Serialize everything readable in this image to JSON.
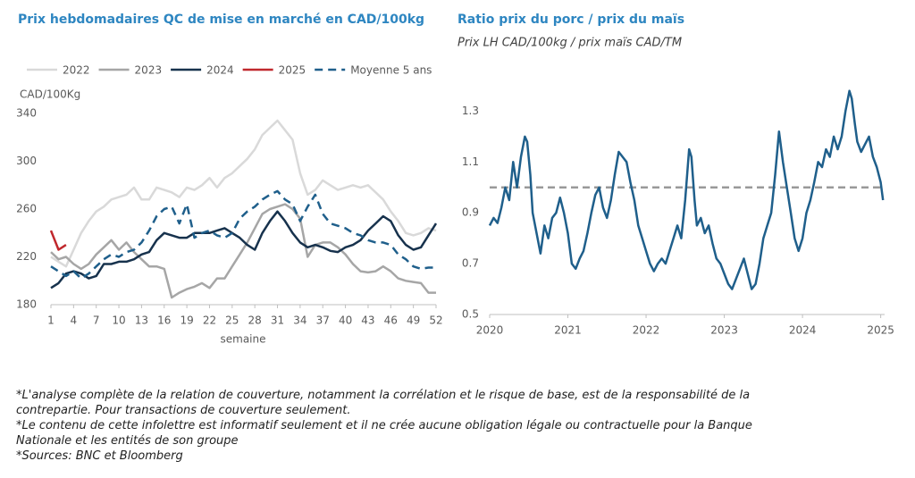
{
  "chart_data": [
    {
      "type": "line",
      "title": "Prix hebdomadaires QC de mise en marché en CAD/100kg",
      "y_label": "CAD/100Kg",
      "x_label": "semaine",
      "x": [
        1,
        2,
        3,
        4,
        5,
        6,
        7,
        8,
        9,
        10,
        11,
        12,
        13,
        14,
        15,
        16,
        17,
        18,
        19,
        20,
        21,
        22,
        23,
        24,
        25,
        26,
        27,
        28,
        29,
        30,
        31,
        32,
        33,
        34,
        35,
        36,
        37,
        38,
        39,
        40,
        41,
        42,
        43,
        44,
        45,
        46,
        47,
        48,
        49,
        50,
        51,
        52
      ],
      "xlim": [
        1,
        52
      ],
      "xticks": [
        1,
        4,
        7,
        10,
        13,
        16,
        19,
        22,
        25,
        28,
        31,
        34,
        37,
        40,
        43,
        46,
        49,
        52
      ],
      "ylim": [
        180,
        340
      ],
      "yticks": [
        180,
        220,
        260,
        300,
        340
      ],
      "series": [
        {
          "name": "2022",
          "color": "#d9d9d9",
          "style": "solid",
          "values": [
            220,
            216,
            212,
            226,
            240,
            250,
            258,
            262,
            268,
            270,
            272,
            278,
            268,
            268,
            278,
            276,
            274,
            270,
            278,
            276,
            280,
            286,
            278,
            286,
            290,
            296,
            302,
            310,
            322,
            328,
            334,
            326,
            318,
            290,
            272,
            276,
            284,
            280,
            276,
            278,
            280,
            278,
            280,
            274,
            268,
            258,
            250,
            240,
            238,
            240,
            244,
            242
          ]
        },
        {
          "name": "2023",
          "color": "#a6a6a6",
          "style": "solid",
          "values": [
            224,
            218,
            220,
            214,
            210,
            214,
            222,
            228,
            234,
            226,
            232,
            224,
            218,
            212,
            212,
            210,
            186,
            190,
            193,
            195,
            198,
            194,
            202,
            202,
            212,
            222,
            232,
            244,
            256,
            260,
            262,
            264,
            260,
            252,
            220,
            230,
            232,
            232,
            228,
            222,
            214,
            208,
            207,
            208,
            212,
            208,
            202,
            200,
            199,
            198,
            190,
            190
          ]
        },
        {
          "name": "2024",
          "color": "#17324d",
          "style": "solid",
          "values": [
            194,
            198,
            206,
            208,
            206,
            202,
            204,
            214,
            214,
            216,
            216,
            218,
            222,
            224,
            234,
            240,
            238,
            236,
            236,
            240,
            240,
            240,
            242,
            244,
            240,
            236,
            230,
            226,
            240,
            250,
            258,
            250,
            240,
            232,
            228,
            230,
            228,
            225,
            224,
            228,
            230,
            234,
            242,
            248,
            254,
            250,
            238,
            230,
            226,
            228,
            238,
            248
          ]
        },
        {
          "name": "2025",
          "color": "#c0282d",
          "style": "solid",
          "values": [
            242,
            226,
            230,
            null,
            null,
            null,
            null,
            null,
            null,
            null,
            null,
            null,
            null,
            null,
            null,
            null,
            null,
            null,
            null,
            null,
            null,
            null,
            null,
            null,
            null,
            null,
            null,
            null,
            null,
            null,
            null,
            null,
            null,
            null,
            null,
            null,
            null,
            null,
            null,
            null,
            null,
            null,
            null,
            null,
            null,
            null,
            null,
            null,
            null,
            null,
            null,
            null
          ]
        },
        {
          "name": "Moyenne 5 ans",
          "color": "#1f5f8b",
          "style": "dashed",
          "values": [
            212,
            208,
            204,
            208,
            202,
            206,
            212,
            218,
            222,
            220,
            224,
            226,
            232,
            242,
            254,
            260,
            262,
            248,
            264,
            236,
            240,
            242,
            238,
            236,
            240,
            252,
            258,
            262,
            268,
            272,
            275,
            268,
            264,
            250,
            262,
            272,
            256,
            248,
            246,
            244,
            240,
            238,
            234,
            232,
            232,
            230,
            222,
            218,
            212,
            210,
            211,
            211
          ]
        }
      ]
    },
    {
      "type": "line",
      "title": "Ratio prix du porc / prix du maïs",
      "subtitle": "Prix LH CAD/100kg / prix maïs CAD/TM",
      "color": "#1f5f8b",
      "x": [
        2020.0,
        2020.05,
        2020.1,
        2020.15,
        2020.2,
        2020.25,
        2020.3,
        2020.35,
        2020.4,
        2020.45,
        2020.48,
        2020.52,
        2020.55,
        2020.6,
        2020.65,
        2020.7,
        2020.75,
        2020.8,
        2020.85,
        2020.9,
        2020.95,
        2021.0,
        2021.05,
        2021.1,
        2021.15,
        2021.2,
        2021.25,
        2021.3,
        2021.35,
        2021.4,
        2021.45,
        2021.5,
        2021.55,
        2021.6,
        2021.65,
        2021.7,
        2021.75,
        2021.8,
        2021.85,
        2021.9,
        2021.95,
        2022.0,
        2022.05,
        2022.1,
        2022.15,
        2022.2,
        2022.25,
        2022.3,
        2022.35,
        2022.4,
        2022.45,
        2022.5,
        2022.55,
        2022.58,
        2022.62,
        2022.65,
        2022.7,
        2022.75,
        2022.8,
        2022.85,
        2022.9,
        2022.95,
        2023.0,
        2023.05,
        2023.1,
        2023.15,
        2023.2,
        2023.25,
        2023.3,
        2023.35,
        2023.4,
        2023.45,
        2023.5,
        2023.55,
        2023.6,
        2023.65,
        2023.7,
        2023.75,
        2023.8,
        2023.85,
        2023.9,
        2023.95,
        2024.0,
        2024.05,
        2024.1,
        2024.15,
        2024.2,
        2024.25,
        2024.3,
        2024.35,
        2024.4,
        2024.45,
        2024.5,
        2024.55,
        2024.6,
        2024.63,
        2024.67,
        2024.7,
        2024.75,
        2024.8,
        2024.85,
        2024.9,
        2024.95,
        2025.0,
        2025.03
      ],
      "values": [
        0.85,
        0.88,
        0.86,
        0.92,
        1.0,
        0.95,
        1.1,
        1.0,
        1.12,
        1.2,
        1.18,
        1.05,
        0.9,
        0.82,
        0.74,
        0.85,
        0.8,
        0.88,
        0.9,
        0.96,
        0.9,
        0.82,
        0.7,
        0.68,
        0.72,
        0.75,
        0.82,
        0.9,
        0.97,
        1.0,
        0.92,
        0.88,
        0.95,
        1.05,
        1.14,
        1.12,
        1.1,
        1.02,
        0.95,
        0.85,
        0.8,
        0.75,
        0.7,
        0.67,
        0.7,
        0.72,
        0.7,
        0.75,
        0.8,
        0.85,
        0.8,
        0.95,
        1.15,
        1.12,
        0.95,
        0.85,
        0.88,
        0.82,
        0.85,
        0.78,
        0.72,
        0.7,
        0.66,
        0.62,
        0.6,
        0.64,
        0.68,
        0.72,
        0.66,
        0.6,
        0.62,
        0.7,
        0.8,
        0.85,
        0.9,
        1.05,
        1.22,
        1.1,
        1.0,
        0.9,
        0.8,
        0.75,
        0.8,
        0.9,
        0.95,
        1.02,
        1.1,
        1.08,
        1.15,
        1.12,
        1.2,
        1.15,
        1.2,
        1.3,
        1.38,
        1.35,
        1.25,
        1.18,
        1.14,
        1.17,
        1.2,
        1.12,
        1.08,
        1.02,
        0.95
      ],
      "xlim": [
        2020,
        2025.05
      ],
      "xticks": [
        2020,
        2021,
        2022,
        2023,
        2024,
        2025
      ],
      "ylim": [
        0.5,
        1.4
      ],
      "yticks": [
        0.5,
        0.7,
        0.9,
        1.1,
        1.3
      ],
      "reference_line": {
        "value": 1.0,
        "color": "#999999",
        "style": "dashed"
      }
    }
  ],
  "footnotes": [
    "*L'analyse complète de la relation de couverture, notamment la corrélation et le risque de base, est de la responsabilité de la contrepartie. Pour transactions de couverture seulement.",
    "*Le contenu de cette infolettre est informatif seulement et il ne crée aucune obligation légale ou contractuelle pour la Banque Nationale et les entités de son groupe",
    "*Sources: BNC et Bloomberg"
  ]
}
